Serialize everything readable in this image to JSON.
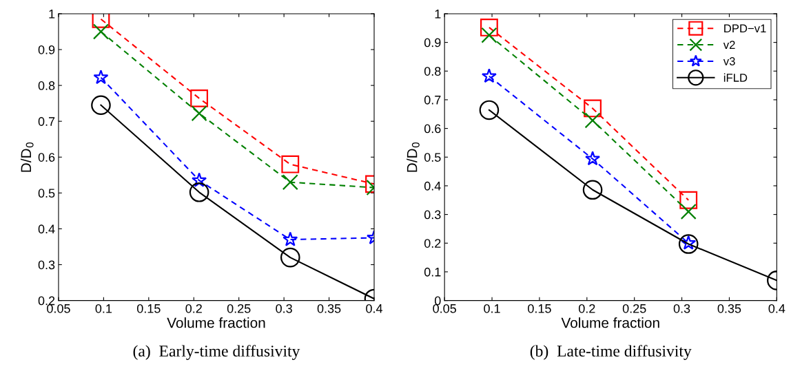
{
  "chart_data": [
    {
      "type": "line",
      "xlabel": "Volume fraction",
      "ylabel": "D/D$_{0}$",
      "annotations": [
        "(a)  Early-time diffusivity"
      ],
      "xlim": [
        0.05,
        0.4
      ],
      "xticks": [
        0.05,
        0.1,
        0.15,
        0.2,
        0.25,
        0.3,
        0.35,
        0.4
      ],
      "ylim": [
        0.2,
        1
      ],
      "yticks": [
        0.2,
        0.3,
        0.4,
        0.5,
        0.6,
        0.7,
        0.8,
        0.9,
        1
      ],
      "grid": false,
      "legend": false,
      "series": [
        {
          "color": "#ff0000",
          "marker": "square",
          "line_style": "dashed",
          "x": [
            0.097,
            0.206,
            0.307,
            0.4
          ],
          "values": [
            0.985,
            0.764,
            0.58,
            0.525
          ]
        },
        {
          "color": "#008000",
          "marker": "cross",
          "line_style": "dashed",
          "x": [
            0.097,
            0.206,
            0.307,
            0.4
          ],
          "values": [
            0.95,
            0.722,
            0.53,
            0.515
          ]
        },
        {
          "color": "#0000ff",
          "marker": "star",
          "line_style": "dashed",
          "x": [
            0.097,
            0.206,
            0.307,
            0.4
          ],
          "values": [
            0.822,
            0.535,
            0.37,
            0.375
          ]
        },
        {
          "color": "#000000",
          "marker": "circle",
          "line_style": "solid",
          "x": [
            0.097,
            0.206,
            0.307,
            0.4
          ],
          "values": [
            0.745,
            0.502,
            0.32,
            0.205
          ]
        }
      ]
    },
    {
      "type": "line",
      "xlabel": "Volume fraction",
      "ylabel": "D/D$_{0}$",
      "annotations": [
        "(b)  Late-time diffusivity"
      ],
      "xlim": [
        0.05,
        0.4
      ],
      "xticks": [
        0.05,
        0.1,
        0.15,
        0.2,
        0.25,
        0.3,
        0.35,
        0.4
      ],
      "ylim": [
        0,
        1
      ],
      "yticks": [
        0,
        0.1,
        0.2,
        0.3,
        0.4,
        0.5,
        0.6,
        0.7,
        0.8,
        0.9,
        1
      ],
      "grid": false,
      "legend": "top right",
      "series": [
        {
          "name": "DPD−v1",
          "color": "#ff0000",
          "marker": "square",
          "line_style": "dashed",
          "x": [
            0.097,
            0.206,
            0.307
          ],
          "values": [
            0.952,
            0.67,
            0.35
          ]
        },
        {
          "name": "v2",
          "color": "#008000",
          "marker": "cross",
          "line_style": "dashed",
          "x": [
            0.097,
            0.206,
            0.307
          ],
          "values": [
            0.925,
            0.628,
            0.31
          ]
        },
        {
          "name": "v3",
          "color": "#0000ff",
          "marker": "star",
          "line_style": "dashed",
          "x": [
            0.097,
            0.206,
            0.307
          ],
          "values": [
            0.782,
            0.494,
            0.2
          ]
        },
        {
          "name": "iFLD",
          "color": "#000000",
          "marker": "circle",
          "line_style": "solid",
          "x": [
            0.097,
            0.206,
            0.307,
            0.4
          ],
          "values": [
            0.664,
            0.386,
            0.197,
            0.07
          ]
        }
      ]
    }
  ]
}
